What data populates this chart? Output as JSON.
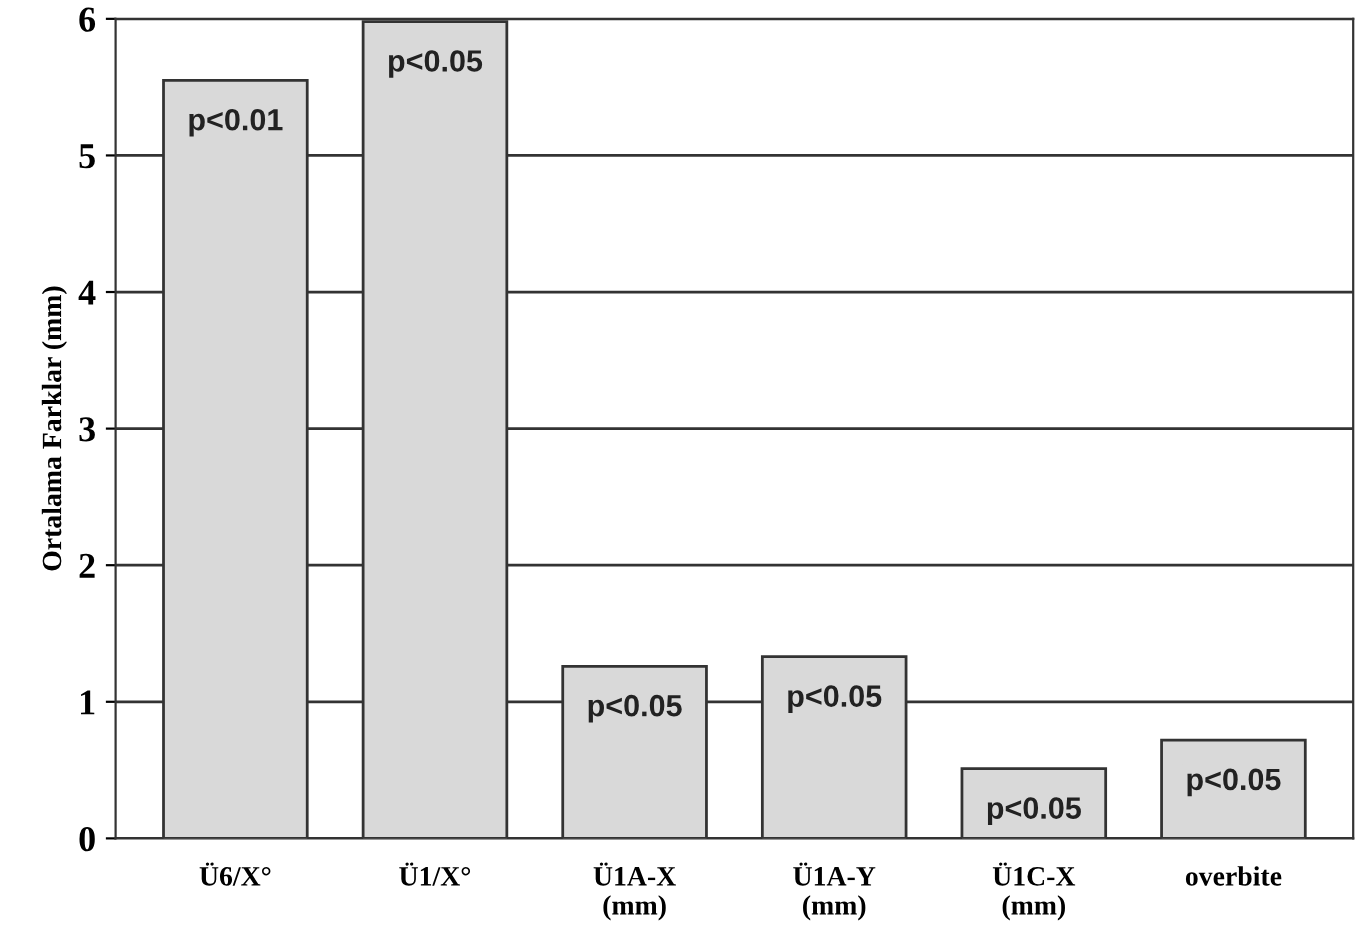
{
  "chart_data": {
    "type": "bar",
    "ylabel": "Ortalama Farklar (mm)",
    "categories": [
      "Ü6/X°",
      "Ü1/X°",
      "Ü1A-X\n(mm)",
      "Ü1A-Y\n(mm)",
      "Ü1C-X\n(mm)",
      "overbite"
    ],
    "values": [
      5.55,
      5.98,
      1.26,
      1.33,
      0.51,
      0.72
    ],
    "color": "#d9d9d9",
    "value_labels": [
      "p<0.01",
      "p<0.05",
      "p<0.05",
      "p<0.05",
      "p<0.05",
      "p<0.05"
    ],
    "ylim": [
      0,
      6
    ],
    "yticks": [
      0,
      1,
      2,
      3,
      4,
      5,
      6
    ],
    "grid": "y"
  }
}
